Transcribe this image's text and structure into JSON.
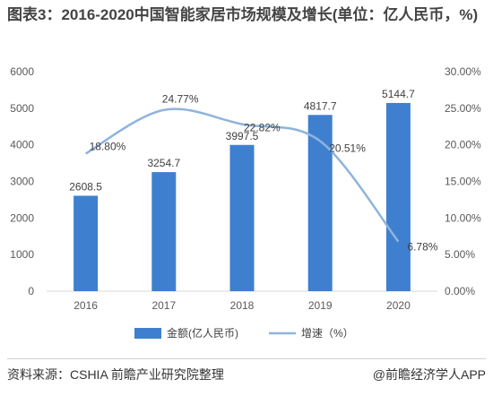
{
  "title": "图表3：2016-2020中国智能家居市场规模及增长(单位：亿人民币，%)",
  "footer": {
    "source": "资料来源：CSHIA 前瞻产业研究院整理",
    "credit": "@前瞻经济学人APP"
  },
  "colors": {
    "bar": "#3f7fcf",
    "line": "#8fb4dc"
  },
  "chart_data": {
    "type": "bar",
    "categories": [
      "2016",
      "2017",
      "2018",
      "2019",
      "2020"
    ],
    "series": [
      {
        "name": "金额(亿人民币)",
        "type": "bar",
        "axis": "left",
        "values": [
          2608.5,
          3254.7,
          3997.5,
          4817.7,
          5144.7
        ],
        "labels": [
          "2608.5",
          "3254.7",
          "3997.5",
          "4817.7",
          "5144.7"
        ]
      },
      {
        "name": "增速（%）",
        "type": "line",
        "axis": "right",
        "values": [
          18.8,
          24.77,
          22.82,
          20.51,
          6.78
        ],
        "labels": [
          "18.80%",
          "24.77%",
          "22.82%",
          "20.51%",
          "6.78%"
        ]
      }
    ],
    "y_left": {
      "range": [
        0,
        6000
      ],
      "ticks": [
        "0",
        "1000",
        "2000",
        "3000",
        "4000",
        "5000",
        "6000"
      ]
    },
    "y_right": {
      "range": [
        0,
        30
      ],
      "ticks": [
        "0.00%",
        "5.00%",
        "10.00%",
        "15.00%",
        "20.00%",
        "25.00%",
        "30.00%"
      ]
    },
    "grid": false,
    "legend_position": "bottom"
  }
}
